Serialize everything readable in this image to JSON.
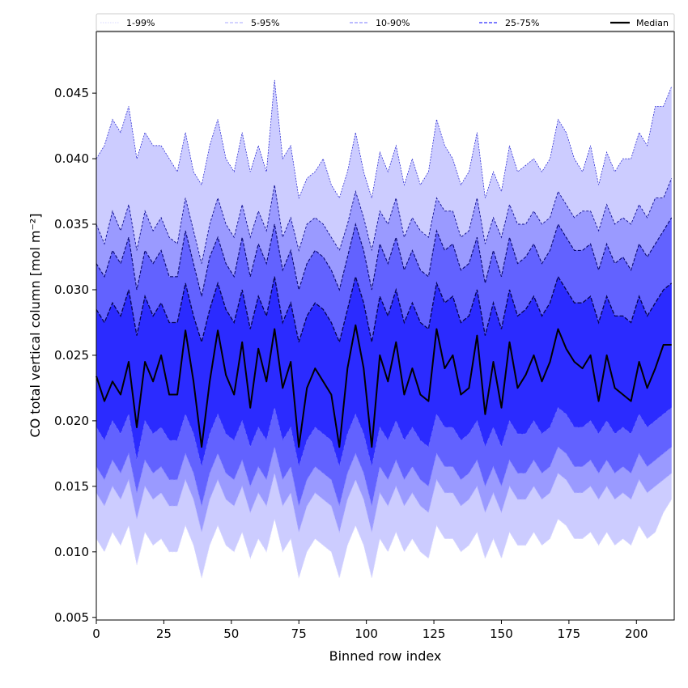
{
  "chart_data": {
    "type": "area",
    "title": "",
    "xlabel": "Binned row index",
    "ylabel": "CO total vertical column [mol m⁻²]",
    "xlim": [
      0,
      214
    ],
    "ylim": [
      0.0048,
      0.0497
    ],
    "xticks": [
      0,
      25,
      50,
      75,
      100,
      125,
      150,
      175,
      200
    ],
    "xtick_labels": [
      "0",
      "25",
      "50",
      "75",
      "100",
      "125",
      "150",
      "175",
      "200"
    ],
    "yticks": [
      0.005,
      0.01,
      0.015,
      0.02,
      0.025,
      0.03,
      0.035,
      0.04,
      0.045
    ],
    "ytick_labels": [
      "0.005",
      "0.010",
      "0.015",
      "0.020",
      "0.025",
      "0.030",
      "0.035",
      "0.040",
      "0.045"
    ],
    "grid": false,
    "legend_placement": "top, above axes",
    "legend": [
      {
        "label": "1-99%",
        "color": "#d8d8ff",
        "style": "dotted"
      },
      {
        "label": "5-95%",
        "color": "#a8a8ff",
        "style": "dashed"
      },
      {
        "label": "10-90%",
        "color": "#7a7aff",
        "style": "dashed"
      },
      {
        "label": "25-75%",
        "color": "#5050ff",
        "style": "dashed"
      },
      {
        "label": "Median",
        "color": "#000000",
        "style": "solid"
      }
    ],
    "bands": [
      {
        "name": "1-99%",
        "fill": "#ccccff",
        "lower": "p1",
        "upper": "p99"
      },
      {
        "name": "5-95%",
        "fill": "#9a9aff",
        "lower": "p5",
        "upper": "p95"
      },
      {
        "name": "10-90%",
        "fill": "#6262ff",
        "lower": "p10",
        "upper": "p90"
      },
      {
        "name": "25-75%",
        "fill": "#2b2bff",
        "lower": "p25",
        "upper": "p75"
      }
    ],
    "x_start": 0,
    "x_step": 3,
    "series": {
      "p1": [
        0.011,
        0.01,
        0.0115,
        0.0105,
        0.012,
        0.009,
        0.0115,
        0.0105,
        0.011,
        0.01,
        0.01,
        0.012,
        0.0105,
        0.008,
        0.0105,
        0.012,
        0.0105,
        0.01,
        0.0115,
        0.0095,
        0.011,
        0.01,
        0.0125,
        0.01,
        0.011,
        0.008,
        0.01,
        0.011,
        0.0105,
        0.01,
        0.008,
        0.0105,
        0.012,
        0.0105,
        0.008,
        0.011,
        0.01,
        0.0115,
        0.01,
        0.011,
        0.01,
        0.0095,
        0.012,
        0.011,
        0.011,
        0.01,
        0.0105,
        0.0115,
        0.0095,
        0.011,
        0.0095,
        0.0115,
        0.0105,
        0.0105,
        0.0115,
        0.0105,
        0.011,
        0.0125,
        0.012,
        0.011,
        0.011,
        0.0115,
        0.0105,
        0.0115,
        0.0105,
        0.011,
        0.0105,
        0.012,
        0.011,
        0.0115,
        0.013,
        0.014
      ],
      "p5": [
        0.0145,
        0.0135,
        0.015,
        0.014,
        0.0155,
        0.0125,
        0.015,
        0.014,
        0.0145,
        0.0135,
        0.0135,
        0.0155,
        0.014,
        0.0115,
        0.014,
        0.0155,
        0.014,
        0.0135,
        0.015,
        0.013,
        0.0145,
        0.0135,
        0.016,
        0.0135,
        0.0145,
        0.0115,
        0.0135,
        0.0145,
        0.014,
        0.0135,
        0.0115,
        0.014,
        0.0155,
        0.014,
        0.0115,
        0.0145,
        0.0135,
        0.015,
        0.0135,
        0.0145,
        0.0135,
        0.013,
        0.0155,
        0.0145,
        0.0145,
        0.0135,
        0.014,
        0.015,
        0.013,
        0.0145,
        0.013,
        0.015,
        0.014,
        0.014,
        0.015,
        0.014,
        0.0145,
        0.016,
        0.0155,
        0.0145,
        0.0145,
        0.015,
        0.014,
        0.015,
        0.014,
        0.0145,
        0.014,
        0.0155,
        0.0145,
        0.015,
        0.0155,
        0.016
      ],
      "p10": [
        0.0165,
        0.0155,
        0.017,
        0.016,
        0.0175,
        0.0145,
        0.017,
        0.016,
        0.0165,
        0.0155,
        0.0155,
        0.0175,
        0.016,
        0.0135,
        0.016,
        0.0175,
        0.016,
        0.0155,
        0.017,
        0.015,
        0.0165,
        0.0155,
        0.018,
        0.0155,
        0.0165,
        0.0135,
        0.0155,
        0.0165,
        0.016,
        0.0155,
        0.0135,
        0.016,
        0.0175,
        0.016,
        0.0135,
        0.0165,
        0.0155,
        0.017,
        0.0155,
        0.0165,
        0.0155,
        0.015,
        0.0175,
        0.0165,
        0.0165,
        0.0155,
        0.016,
        0.017,
        0.015,
        0.0165,
        0.015,
        0.017,
        0.016,
        0.016,
        0.017,
        0.016,
        0.0165,
        0.018,
        0.0175,
        0.0165,
        0.0165,
        0.017,
        0.016,
        0.017,
        0.016,
        0.0165,
        0.016,
        0.0175,
        0.0165,
        0.017,
        0.0175,
        0.018
      ],
      "p25": [
        0.0195,
        0.0185,
        0.02,
        0.019,
        0.0205,
        0.017,
        0.02,
        0.019,
        0.0195,
        0.0185,
        0.0185,
        0.0205,
        0.019,
        0.0165,
        0.019,
        0.0205,
        0.019,
        0.0185,
        0.02,
        0.018,
        0.0195,
        0.0185,
        0.021,
        0.0185,
        0.0195,
        0.0165,
        0.0185,
        0.0195,
        0.019,
        0.0185,
        0.0165,
        0.019,
        0.0205,
        0.019,
        0.0165,
        0.0195,
        0.0185,
        0.02,
        0.0185,
        0.0195,
        0.0185,
        0.018,
        0.0205,
        0.0195,
        0.0195,
        0.0185,
        0.019,
        0.02,
        0.018,
        0.0195,
        0.018,
        0.02,
        0.019,
        0.019,
        0.02,
        0.019,
        0.0195,
        0.021,
        0.0205,
        0.0195,
        0.0195,
        0.02,
        0.019,
        0.02,
        0.019,
        0.0195,
        0.019,
        0.0205,
        0.0195,
        0.02,
        0.0205,
        0.021
      ],
      "median": [
        0.0234,
        0.0215,
        0.023,
        0.022,
        0.0245,
        0.0195,
        0.0245,
        0.023,
        0.025,
        0.022,
        0.022,
        0.0269,
        0.023,
        0.018,
        0.023,
        0.0269,
        0.0235,
        0.022,
        0.026,
        0.021,
        0.0255,
        0.023,
        0.027,
        0.0225,
        0.0245,
        0.018,
        0.0225,
        0.024,
        0.023,
        0.022,
        0.018,
        0.024,
        0.0273,
        0.024,
        0.018,
        0.025,
        0.023,
        0.026,
        0.022,
        0.024,
        0.022,
        0.0215,
        0.027,
        0.024,
        0.025,
        0.022,
        0.0225,
        0.0265,
        0.0205,
        0.0245,
        0.021,
        0.026,
        0.0225,
        0.0235,
        0.025,
        0.023,
        0.0245,
        0.027,
        0.0255,
        0.0245,
        0.024,
        0.025,
        0.0215,
        0.025,
        0.0225,
        0.022,
        0.0215,
        0.0245,
        0.0225,
        0.024,
        0.0258,
        0.0258
      ],
      "p75": [
        0.0285,
        0.0275,
        0.029,
        0.028,
        0.03,
        0.0265,
        0.0295,
        0.028,
        0.029,
        0.0275,
        0.0275,
        0.0305,
        0.028,
        0.026,
        0.0285,
        0.0305,
        0.0285,
        0.0275,
        0.03,
        0.027,
        0.0295,
        0.028,
        0.031,
        0.0275,
        0.029,
        0.026,
        0.028,
        0.029,
        0.0285,
        0.0275,
        0.026,
        0.0285,
        0.031,
        0.029,
        0.026,
        0.0295,
        0.028,
        0.03,
        0.0275,
        0.029,
        0.0275,
        0.027,
        0.0305,
        0.029,
        0.0295,
        0.0275,
        0.028,
        0.03,
        0.0265,
        0.029,
        0.027,
        0.03,
        0.028,
        0.0285,
        0.0295,
        0.028,
        0.029,
        0.031,
        0.03,
        0.029,
        0.029,
        0.0295,
        0.0275,
        0.0295,
        0.028,
        0.028,
        0.0275,
        0.0295,
        0.028,
        0.029,
        0.03,
        0.0305
      ],
      "p90": [
        0.032,
        0.031,
        0.033,
        0.032,
        0.034,
        0.03,
        0.033,
        0.032,
        0.033,
        0.031,
        0.031,
        0.0345,
        0.032,
        0.0295,
        0.0325,
        0.034,
        0.032,
        0.031,
        0.034,
        0.031,
        0.0335,
        0.032,
        0.035,
        0.0315,
        0.033,
        0.03,
        0.032,
        0.033,
        0.0325,
        0.0315,
        0.03,
        0.0325,
        0.035,
        0.033,
        0.03,
        0.0335,
        0.032,
        0.034,
        0.0315,
        0.033,
        0.0315,
        0.031,
        0.0345,
        0.033,
        0.0335,
        0.0315,
        0.032,
        0.034,
        0.0305,
        0.033,
        0.031,
        0.034,
        0.032,
        0.0325,
        0.0335,
        0.032,
        0.033,
        0.035,
        0.034,
        0.033,
        0.033,
        0.0335,
        0.0315,
        0.0335,
        0.032,
        0.0325,
        0.0315,
        0.0335,
        0.0325,
        0.0335,
        0.0345,
        0.0355
      ],
      "p95": [
        0.035,
        0.0335,
        0.036,
        0.0345,
        0.0365,
        0.033,
        0.036,
        0.0345,
        0.0355,
        0.034,
        0.0335,
        0.037,
        0.0345,
        0.032,
        0.035,
        0.037,
        0.035,
        0.034,
        0.0365,
        0.034,
        0.036,
        0.0345,
        0.038,
        0.034,
        0.0355,
        0.033,
        0.035,
        0.0355,
        0.035,
        0.034,
        0.033,
        0.035,
        0.0375,
        0.0355,
        0.033,
        0.036,
        0.035,
        0.037,
        0.034,
        0.0355,
        0.0345,
        0.034,
        0.037,
        0.036,
        0.036,
        0.034,
        0.0345,
        0.037,
        0.0335,
        0.0355,
        0.034,
        0.0365,
        0.035,
        0.035,
        0.036,
        0.035,
        0.0355,
        0.0375,
        0.0365,
        0.0355,
        0.036,
        0.036,
        0.0345,
        0.0365,
        0.035,
        0.0355,
        0.035,
        0.0365,
        0.0355,
        0.037,
        0.037,
        0.0385
      ],
      "p99": [
        0.04,
        0.041,
        0.043,
        0.042,
        0.044,
        0.04,
        0.042,
        0.041,
        0.041,
        0.04,
        0.039,
        0.042,
        0.039,
        0.038,
        0.041,
        0.043,
        0.04,
        0.039,
        0.042,
        0.039,
        0.041,
        0.039,
        0.046,
        0.04,
        0.041,
        0.037,
        0.0385,
        0.039,
        0.04,
        0.038,
        0.037,
        0.039,
        0.042,
        0.039,
        0.037,
        0.0405,
        0.039,
        0.041,
        0.038,
        0.04,
        0.038,
        0.039,
        0.043,
        0.041,
        0.04,
        0.038,
        0.039,
        0.042,
        0.037,
        0.039,
        0.0375,
        0.041,
        0.039,
        0.0395,
        0.04,
        0.039,
        0.04,
        0.043,
        0.042,
        0.04,
        0.039,
        0.041,
        0.038,
        0.0405,
        0.039,
        0.04,
        0.04,
        0.042,
        0.041,
        0.044,
        0.044,
        0.0455
      ]
    }
  }
}
